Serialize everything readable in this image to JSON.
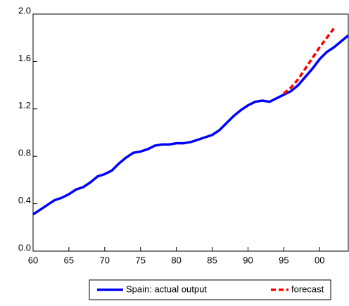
{
  "chart_data": {
    "type": "line",
    "x": [
      1960,
      1961,
      1962,
      1963,
      1964,
      1965,
      1966,
      1967,
      1968,
      1969,
      1970,
      1971,
      1972,
      1973,
      1974,
      1975,
      1976,
      1977,
      1978,
      1979,
      1980,
      1981,
      1982,
      1983,
      1984,
      1985,
      1986,
      1987,
      1988,
      1989,
      1990,
      1991,
      1992,
      1993,
      1994,
      1995,
      1996,
      1997,
      1998,
      1999,
      2000,
      2001,
      2002,
      2003,
      2004
    ],
    "series": [
      {
        "name": "Spain: actual output",
        "color": "#0000ff",
        "dash": false,
        "values": [
          0.31,
          0.35,
          0.39,
          0.43,
          0.45,
          0.48,
          0.52,
          0.54,
          0.58,
          0.63,
          0.65,
          0.68,
          0.74,
          0.79,
          0.83,
          0.84,
          0.86,
          0.89,
          0.9,
          0.9,
          0.91,
          0.91,
          0.92,
          0.94,
          0.96,
          0.98,
          1.02,
          1.08,
          1.14,
          1.19,
          1.23,
          1.26,
          1.27,
          1.26,
          1.29,
          1.32,
          1.35,
          1.4,
          1.47,
          1.54,
          1.62,
          1.68,
          1.72,
          1.77,
          1.82
        ]
      },
      {
        "name": "forecast",
        "color": "#ff0000",
        "dash": true,
        "values": [
          null,
          null,
          null,
          null,
          null,
          null,
          null,
          null,
          null,
          null,
          null,
          null,
          null,
          null,
          null,
          null,
          null,
          null,
          null,
          null,
          null,
          null,
          null,
          null,
          null,
          null,
          null,
          null,
          null,
          null,
          null,
          null,
          null,
          null,
          null,
          1.33,
          1.38,
          1.45,
          1.54,
          1.63,
          1.72,
          1.8,
          1.88,
          null,
          null
        ]
      }
    ],
    "xlim": [
      1960,
      2004
    ],
    "xticks": [
      {
        "value": 1960,
        "label": "60"
      },
      {
        "value": 1965,
        "label": "65"
      },
      {
        "value": 1970,
        "label": "70"
      },
      {
        "value": 1975,
        "label": "75"
      },
      {
        "value": 1980,
        "label": "80"
      },
      {
        "value": 1985,
        "label": "85"
      },
      {
        "value": 1990,
        "label": "90"
      },
      {
        "value": 1995,
        "label": "95"
      },
      {
        "value": 2000,
        "label": "00"
      }
    ],
    "ylim": [
      0,
      2
    ],
    "yticks": [
      {
        "value": 0,
        "label": "0.0"
      },
      0.4,
      0.8,
      1.2,
      1.6,
      {
        "value": 2,
        "label": "2.0"
      }
    ],
    "legend": "bottom"
  }
}
